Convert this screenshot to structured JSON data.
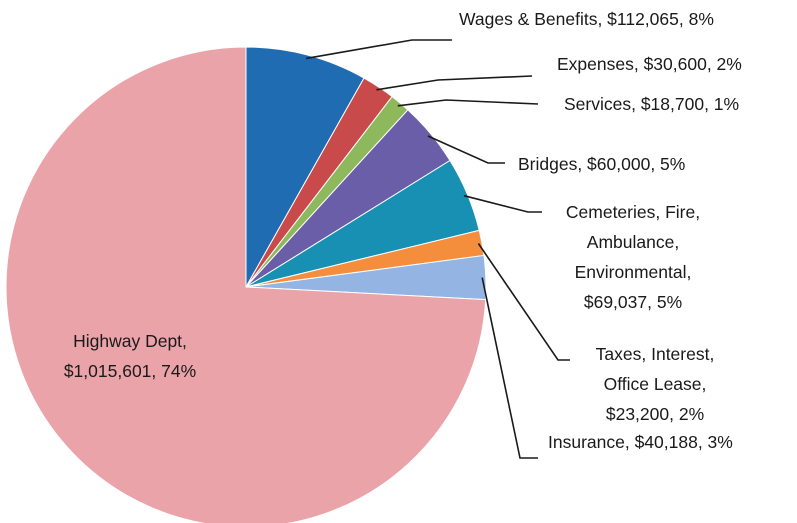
{
  "chart_data": {
    "type": "pie",
    "title": "",
    "legend": "none",
    "slices": [
      {
        "label": "Wages & Benefits, $112,065, 8%",
        "name": "Wages & Benefits",
        "value": 112065,
        "percent": 8,
        "color": "#1f6cb3"
      },
      {
        "label": "Expenses, $30,600, 2%",
        "name": "Expenses",
        "value": 30600,
        "percent": 2,
        "color": "#c94a4a"
      },
      {
        "label": "Services, $18,700, 1%",
        "name": "Services",
        "value": 18700,
        "percent": 1,
        "color": "#8db85c"
      },
      {
        "label": "Bridges, $60,000, 5%",
        "name": "Bridges",
        "value": 60000,
        "percent": 5,
        "color": "#6a5ea8"
      },
      {
        "label": "Cemeteries, Fire, Ambulance, Environmental, $69,037, 5%",
        "name": "Cemeteries, Fire, Ambulance, Environmental",
        "value": 69037,
        "percent": 5,
        "color": "#1790b3"
      },
      {
        "label": "Taxes, Interest, Office Lease, $23,200, 2%",
        "name": "Taxes, Interest, Office Lease",
        "value": 23200,
        "percent": 2,
        "color": "#f58e3c"
      },
      {
        "label": "Insurance, $40,188, 3%",
        "name": "Insurance",
        "value": 40188,
        "percent": 3,
        "color": "#94b5e3"
      },
      {
        "label": "Highway Dept, $1,015,601, 74%",
        "name": "Highway Dept",
        "value": 1015601,
        "percent": 74,
        "color": "#eaa3a9"
      }
    ]
  }
}
